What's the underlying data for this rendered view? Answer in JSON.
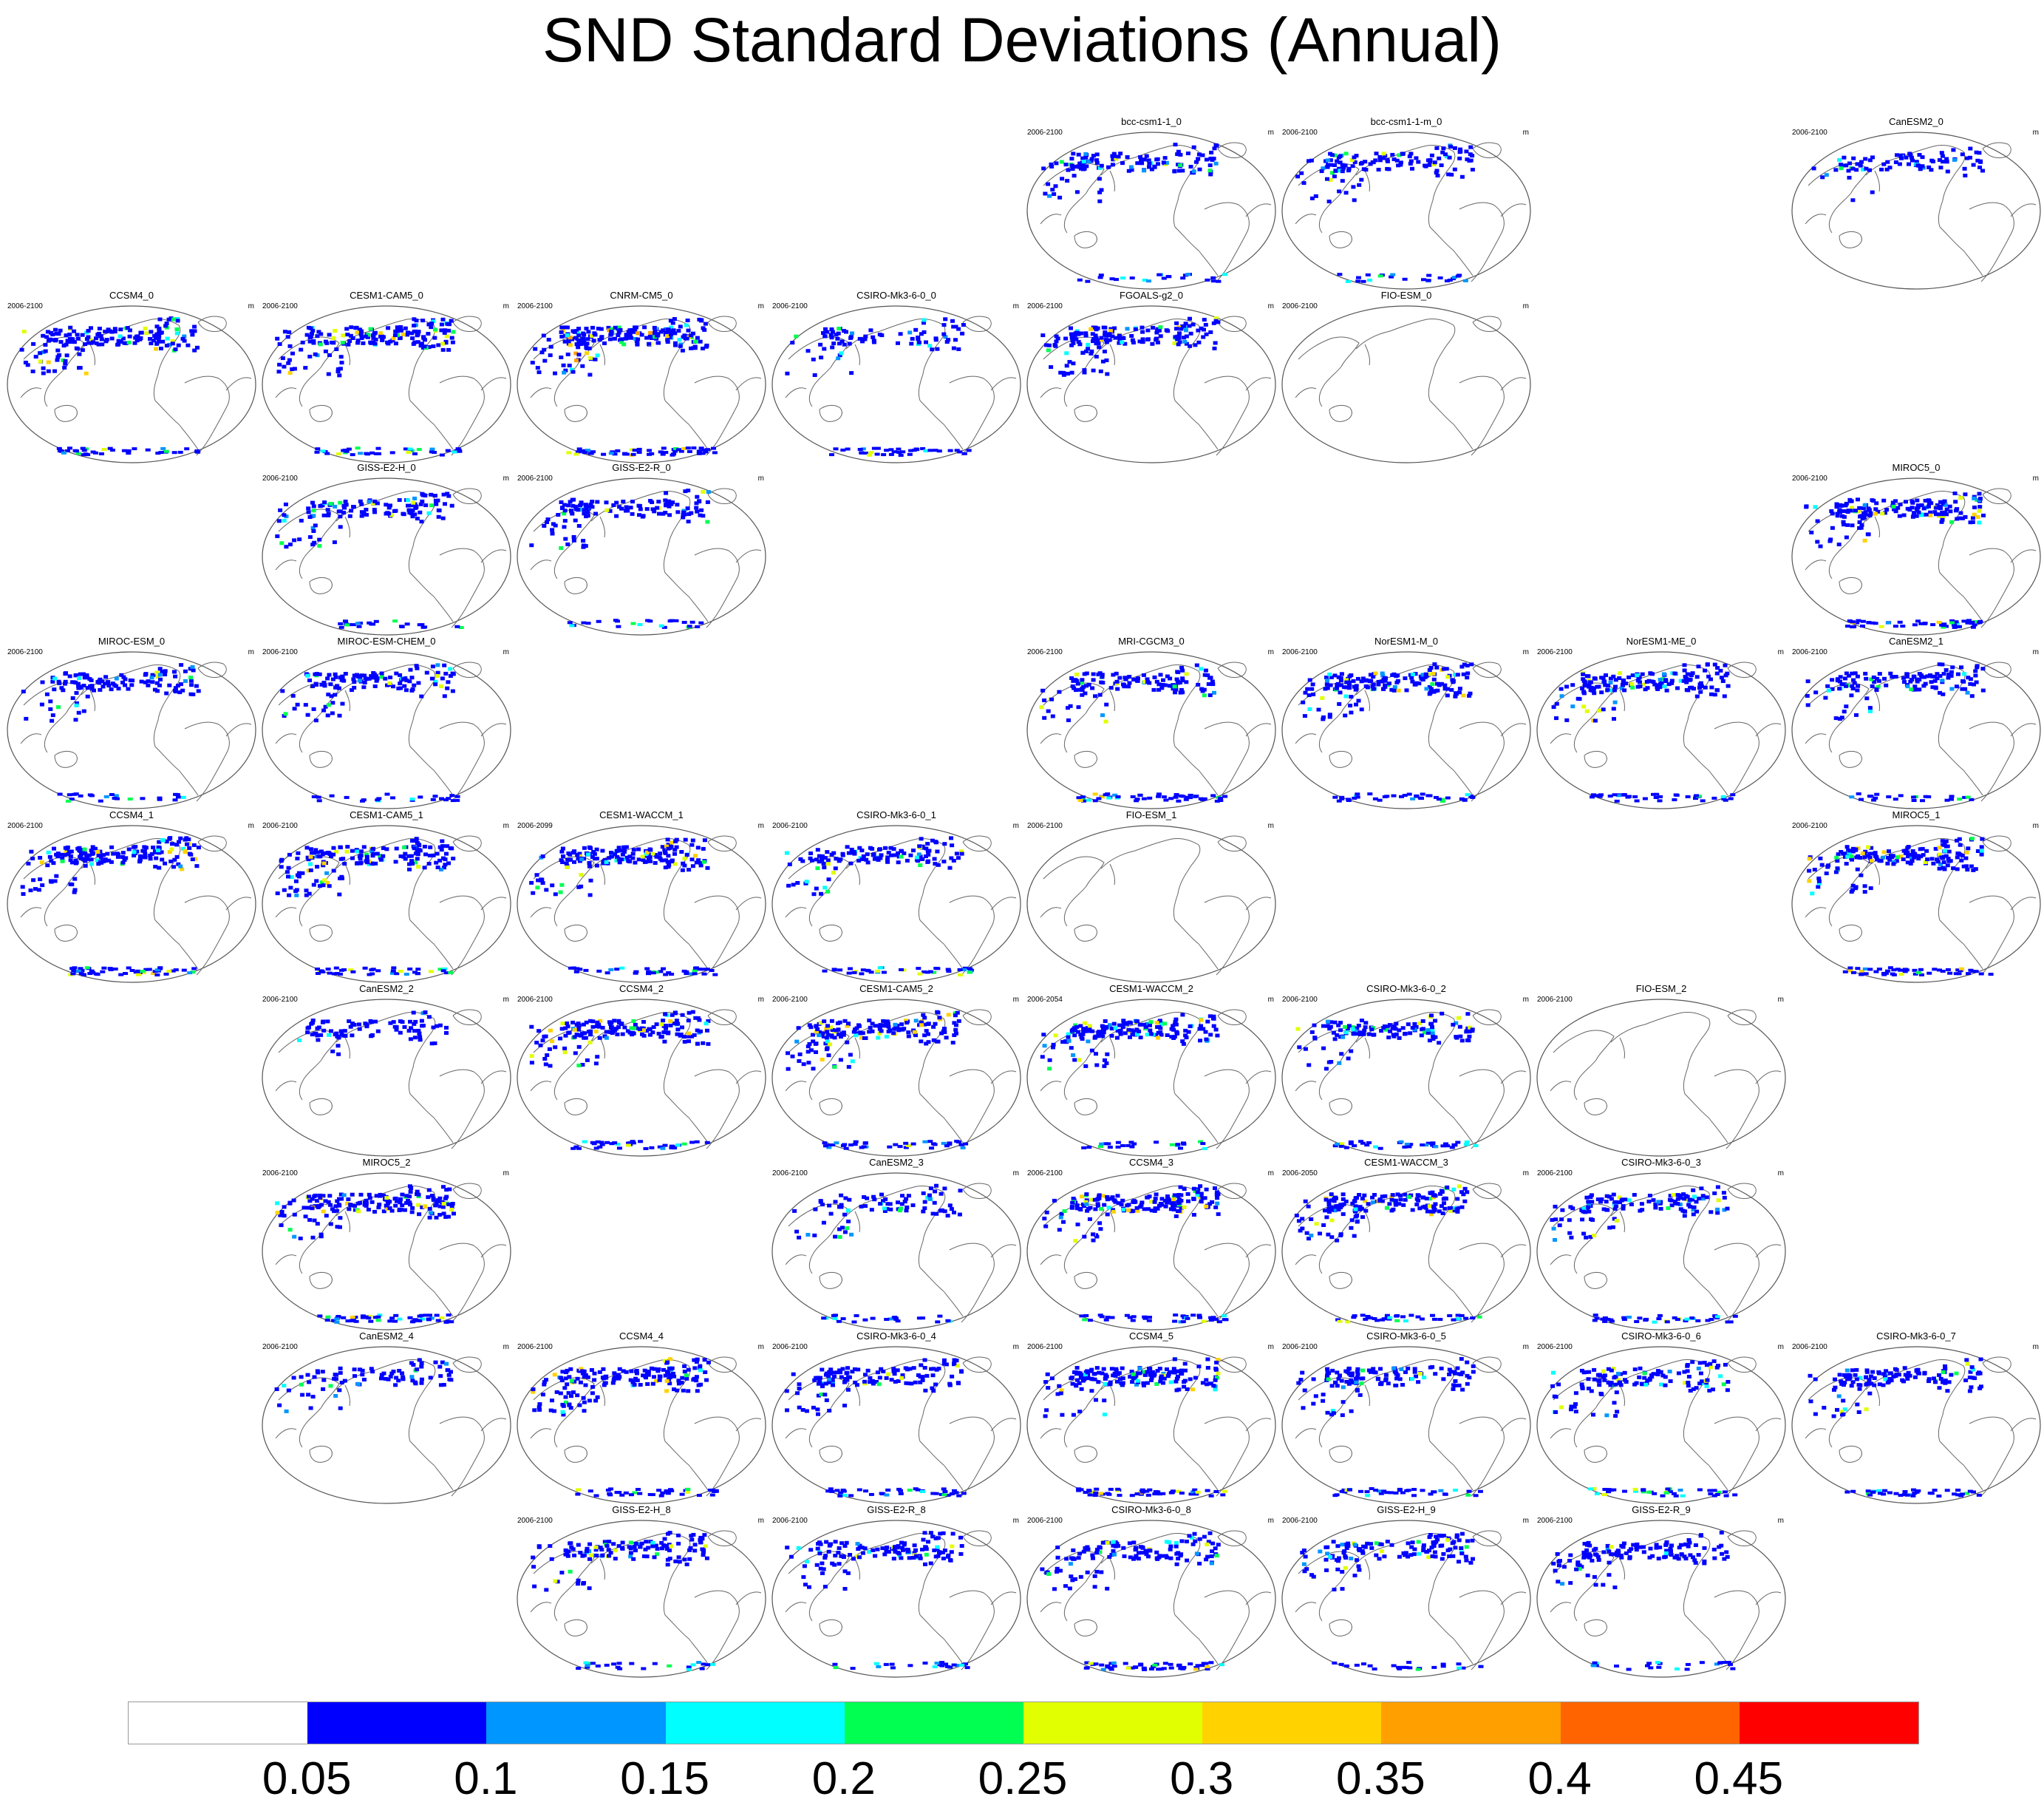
{
  "title": "SND Standard Deviations (Annual)",
  "unit": "m",
  "panels": [
    {
      "name": "bcc-csm1-1_0",
      "period": "2006-2100",
      "row": 0,
      "col": 4,
      "level": 2,
      "antarctic": 1
    },
    {
      "name": "bcc-csm1-1-m_0",
      "period": "2006-2100",
      "row": 0,
      "col": 5,
      "level": 2,
      "antarctic": 1
    },
    {
      "name": "CanESM2_0",
      "period": "2006-2100",
      "row": 0,
      "col": 7,
      "level": 1,
      "antarctic": 0
    },
    {
      "name": "CCSM4_0",
      "period": "2006-2100",
      "row": 1,
      "col": 0,
      "level": 3,
      "antarctic": 2
    },
    {
      "name": "CESM1-CAM5_0",
      "period": "2006-2100",
      "row": 1,
      "col": 1,
      "level": 3,
      "antarctic": 2
    },
    {
      "name": "CNRM-CM5_0",
      "period": "2006-2100",
      "row": 1,
      "col": 2,
      "level": 4,
      "antarctic": 3
    },
    {
      "name": "CSIRO-Mk3-6-0_0",
      "period": "2006-2100",
      "row": 1,
      "col": 3,
      "level": 1,
      "antarctic": 2
    },
    {
      "name": "FGOALS-g2_0",
      "period": "2006-2100",
      "row": 1,
      "col": 4,
      "level": 3,
      "antarctic": 0
    },
    {
      "name": "FIO-ESM_0",
      "period": "2006-2100",
      "row": 1,
      "col": 5,
      "level": 0,
      "antarctic": 0
    },
    {
      "name": "GISS-E2-H_0",
      "period": "2006-2100",
      "row": 2,
      "col": 1,
      "level": 2,
      "antarctic": 1
    },
    {
      "name": "GISS-E2-R_0",
      "period": "2006-2100",
      "row": 2,
      "col": 2,
      "level": 2,
      "antarctic": 1
    },
    {
      "name": "MIROC5_0",
      "period": "2006-2100",
      "row": 2,
      "col": 7,
      "level": 3,
      "antarctic": 3
    },
    {
      "name": "MIROC-ESM_0",
      "period": "2006-2100",
      "row": 3,
      "col": 0,
      "level": 2,
      "antarctic": 1
    },
    {
      "name": "MIROC-ESM-CHEM_0",
      "period": "2006-2100",
      "row": 3,
      "col": 1,
      "level": 2,
      "antarctic": 1
    },
    {
      "name": "MRI-CGCM3_0",
      "period": "2006-2100",
      "row": 3,
      "col": 4,
      "level": 2,
      "antarctic": 3
    },
    {
      "name": "NorESM1-M_0",
      "period": "2006-2100",
      "row": 3,
      "col": 5,
      "level": 3,
      "antarctic": 2
    },
    {
      "name": "NorESM1-ME_0",
      "period": "2006-2100",
      "row": 3,
      "col": 6,
      "level": 3,
      "antarctic": 2
    },
    {
      "name": "CanESM2_1",
      "period": "2006-2100",
      "row": 3,
      "col": 7,
      "level": 2,
      "antarctic": 1
    },
    {
      "name": "CCSM4_1",
      "period": "2006-2100",
      "row": 4,
      "col": 0,
      "level": 3,
      "antarctic": 3
    },
    {
      "name": "CESM1-CAM5_1",
      "period": "2006-2100",
      "row": 4,
      "col": 1,
      "level": 3,
      "antarctic": 2
    },
    {
      "name": "CESM1-WACCM_1",
      "period": "2006-2099",
      "row": 4,
      "col": 2,
      "level": 3,
      "antarctic": 2
    },
    {
      "name": "CSIRO-Mk3-6-0_1",
      "period": "2006-2100",
      "row": 4,
      "col": 3,
      "level": 2,
      "antarctic": 2
    },
    {
      "name": "FIO-ESM_1",
      "period": "2006-2100",
      "row": 4,
      "col": 4,
      "level": 0,
      "antarctic": 0
    },
    {
      "name": "MIROC5_1",
      "period": "2006-2100",
      "row": 4,
      "col": 7,
      "level": 3,
      "antarctic": 3
    },
    {
      "name": "CanESM2_2",
      "period": "2006-2100",
      "row": 5,
      "col": 1,
      "level": 1,
      "antarctic": 0
    },
    {
      "name": "CCSM4_2",
      "period": "2006-2100",
      "row": 5,
      "col": 2,
      "level": 3,
      "antarctic": 2
    },
    {
      "name": "CESM1-CAM5_2",
      "period": "2006-2100",
      "row": 5,
      "col": 3,
      "level": 3,
      "antarctic": 2
    },
    {
      "name": "CESM1-WACCM_2",
      "period": "2006-2054",
      "row": 5,
      "col": 4,
      "level": 3,
      "antarctic": 1
    },
    {
      "name": "CSIRO-Mk3-6-0_2",
      "period": "2006-2100",
      "row": 5,
      "col": 5,
      "level": 2,
      "antarctic": 2
    },
    {
      "name": "FIO-ESM_2",
      "period": "2006-2100",
      "row": 5,
      "col": 6,
      "level": 0,
      "antarctic": 0
    },
    {
      "name": "MIROC5_2",
      "period": "2006-2100",
      "row": 6,
      "col": 1,
      "level": 3,
      "antarctic": 3
    },
    {
      "name": "CanESM2_3",
      "period": "2006-2100",
      "row": 6,
      "col": 3,
      "level": 1,
      "antarctic": 1
    },
    {
      "name": "CCSM4_3",
      "period": "2006-2100",
      "row": 6,
      "col": 4,
      "level": 3,
      "antarctic": 2
    },
    {
      "name": "CESM1-WACCM_3",
      "period": "2006-2050",
      "row": 6,
      "col": 5,
      "level": 3,
      "antarctic": 2
    },
    {
      "name": "CSIRO-Mk3-6-0_3",
      "period": "2006-2100",
      "row": 6,
      "col": 6,
      "level": 2,
      "antarctic": 2
    },
    {
      "name": "CanESM2_4",
      "period": "2006-2100",
      "row": 7,
      "col": 1,
      "level": 1,
      "antarctic": 0
    },
    {
      "name": "CCSM4_4",
      "period": "2006-2100",
      "row": 7,
      "col": 2,
      "level": 3,
      "antarctic": 2
    },
    {
      "name": "CSIRO-Mk3-6-0_4",
      "period": "2006-2100",
      "row": 7,
      "col": 3,
      "level": 2,
      "antarctic": 2
    },
    {
      "name": "CCSM4_5",
      "period": "2006-2100",
      "row": 7,
      "col": 4,
      "level": 3,
      "antarctic": 3
    },
    {
      "name": "CSIRO-Mk3-6-0_5",
      "period": "2006-2100",
      "row": 7,
      "col": 5,
      "level": 2,
      "antarctic": 2
    },
    {
      "name": "CSIRO-Mk3-6-0_6",
      "period": "2006-2100",
      "row": 7,
      "col": 6,
      "level": 2,
      "antarctic": 2
    },
    {
      "name": "CSIRO-Mk3-6-0_7",
      "period": "2006-2100",
      "row": 7,
      "col": 7,
      "level": 2,
      "antarctic": 2
    },
    {
      "name": "GISS-E2-H_8",
      "period": "2006-2100",
      "row": 8,
      "col": 2,
      "level": 2,
      "antarctic": 1
    },
    {
      "name": "GISS-E2-R_8",
      "period": "2006-2100",
      "row": 8,
      "col": 3,
      "level": 2,
      "antarctic": 1
    },
    {
      "name": "CSIRO-Mk3-6-0_8",
      "period": "2006-2100",
      "row": 8,
      "col": 4,
      "level": 2,
      "antarctic": 3
    },
    {
      "name": "GISS-E2-H_9",
      "period": "2006-2100",
      "row": 8,
      "col": 5,
      "level": 2,
      "antarctic": 1
    },
    {
      "name": "GISS-E2-R_9",
      "period": "2006-2100",
      "row": 8,
      "col": 6,
      "level": 2,
      "antarctic": 1
    }
  ],
  "colorbar": {
    "colors": [
      "#ffffff",
      "#0000ff",
      "#0096ff",
      "#00ffff",
      "#00ff50",
      "#e1ff00",
      "#ffd200",
      "#ffa000",
      "#ff6400",
      "#ff0000"
    ],
    "labels": [
      "0.05",
      "0.1",
      "0.15",
      "0.2",
      "0.25",
      "0.3",
      "0.35",
      "0.4",
      "0.45"
    ]
  }
}
